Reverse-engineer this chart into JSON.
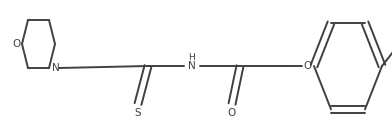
{
  "bg_color": "#ffffff",
  "line_color": "#404040",
  "line_width": 1.4,
  "font_size": 7.5,
  "fig_width": 3.92,
  "fig_height": 1.32,
  "dpi": 100,
  "xlim": [
    0,
    392
  ],
  "ylim": [
    0,
    132
  ]
}
